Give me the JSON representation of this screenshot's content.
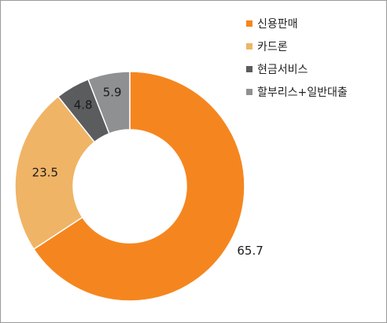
{
  "chart_data": {
    "type": "pie",
    "donut": true,
    "categories": [
      "신용판매",
      "카드론",
      "현금서비스",
      "할부리스+일반대출"
    ],
    "values": [
      65.7,
      23.5,
      4.8,
      5.9
    ],
    "data_labels": [
      "65.7",
      "23.5",
      "4.8",
      "5.9"
    ],
    "colors": [
      "#f5861f",
      "#f0b466",
      "#5a5c5e",
      "#8e9092"
    ],
    "legend_position": "top-right",
    "start": "top, clockwise"
  }
}
